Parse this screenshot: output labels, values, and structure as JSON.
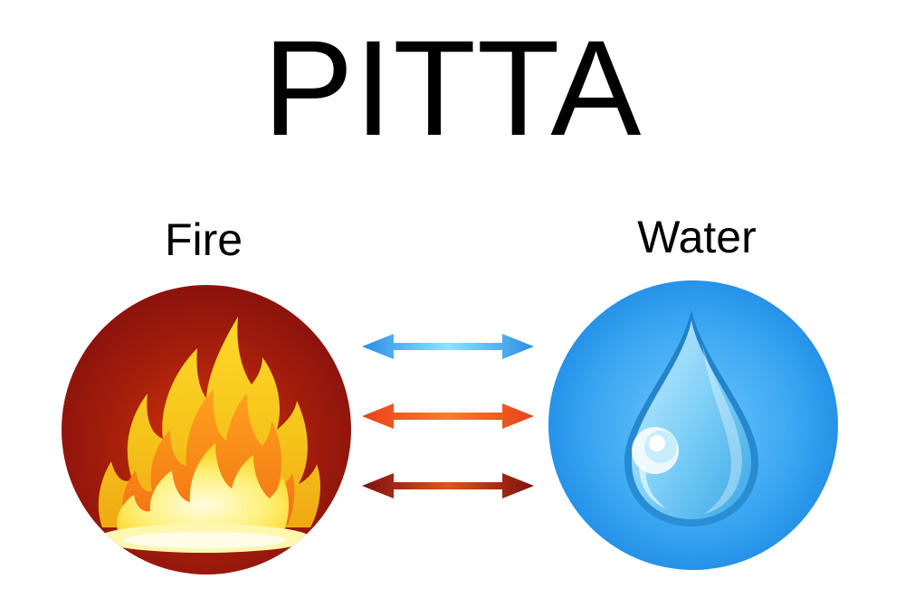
{
  "title": "PITTA",
  "elements": {
    "left": {
      "label": "Fire",
      "icon": "flame-icon"
    },
    "right": {
      "label": "Water",
      "icon": "water-drop-icon"
    }
  },
  "arrows": [
    {
      "name": "blue-arrow",
      "color": "#2a8de6",
      "accent": "#8fe3ff"
    },
    {
      "name": "orange-arrow",
      "color": "#e8411b",
      "accent": "#ff7a2a"
    },
    {
      "name": "darkred-arrow",
      "color": "#7b0f0e",
      "accent": "#e2531c"
    }
  ],
  "colors": {
    "fire_circle": "#a41e0b",
    "water_circle": "#2a96ec",
    "flame_outer": "#f7d21c",
    "flame_inner": "#fff3a0"
  }
}
